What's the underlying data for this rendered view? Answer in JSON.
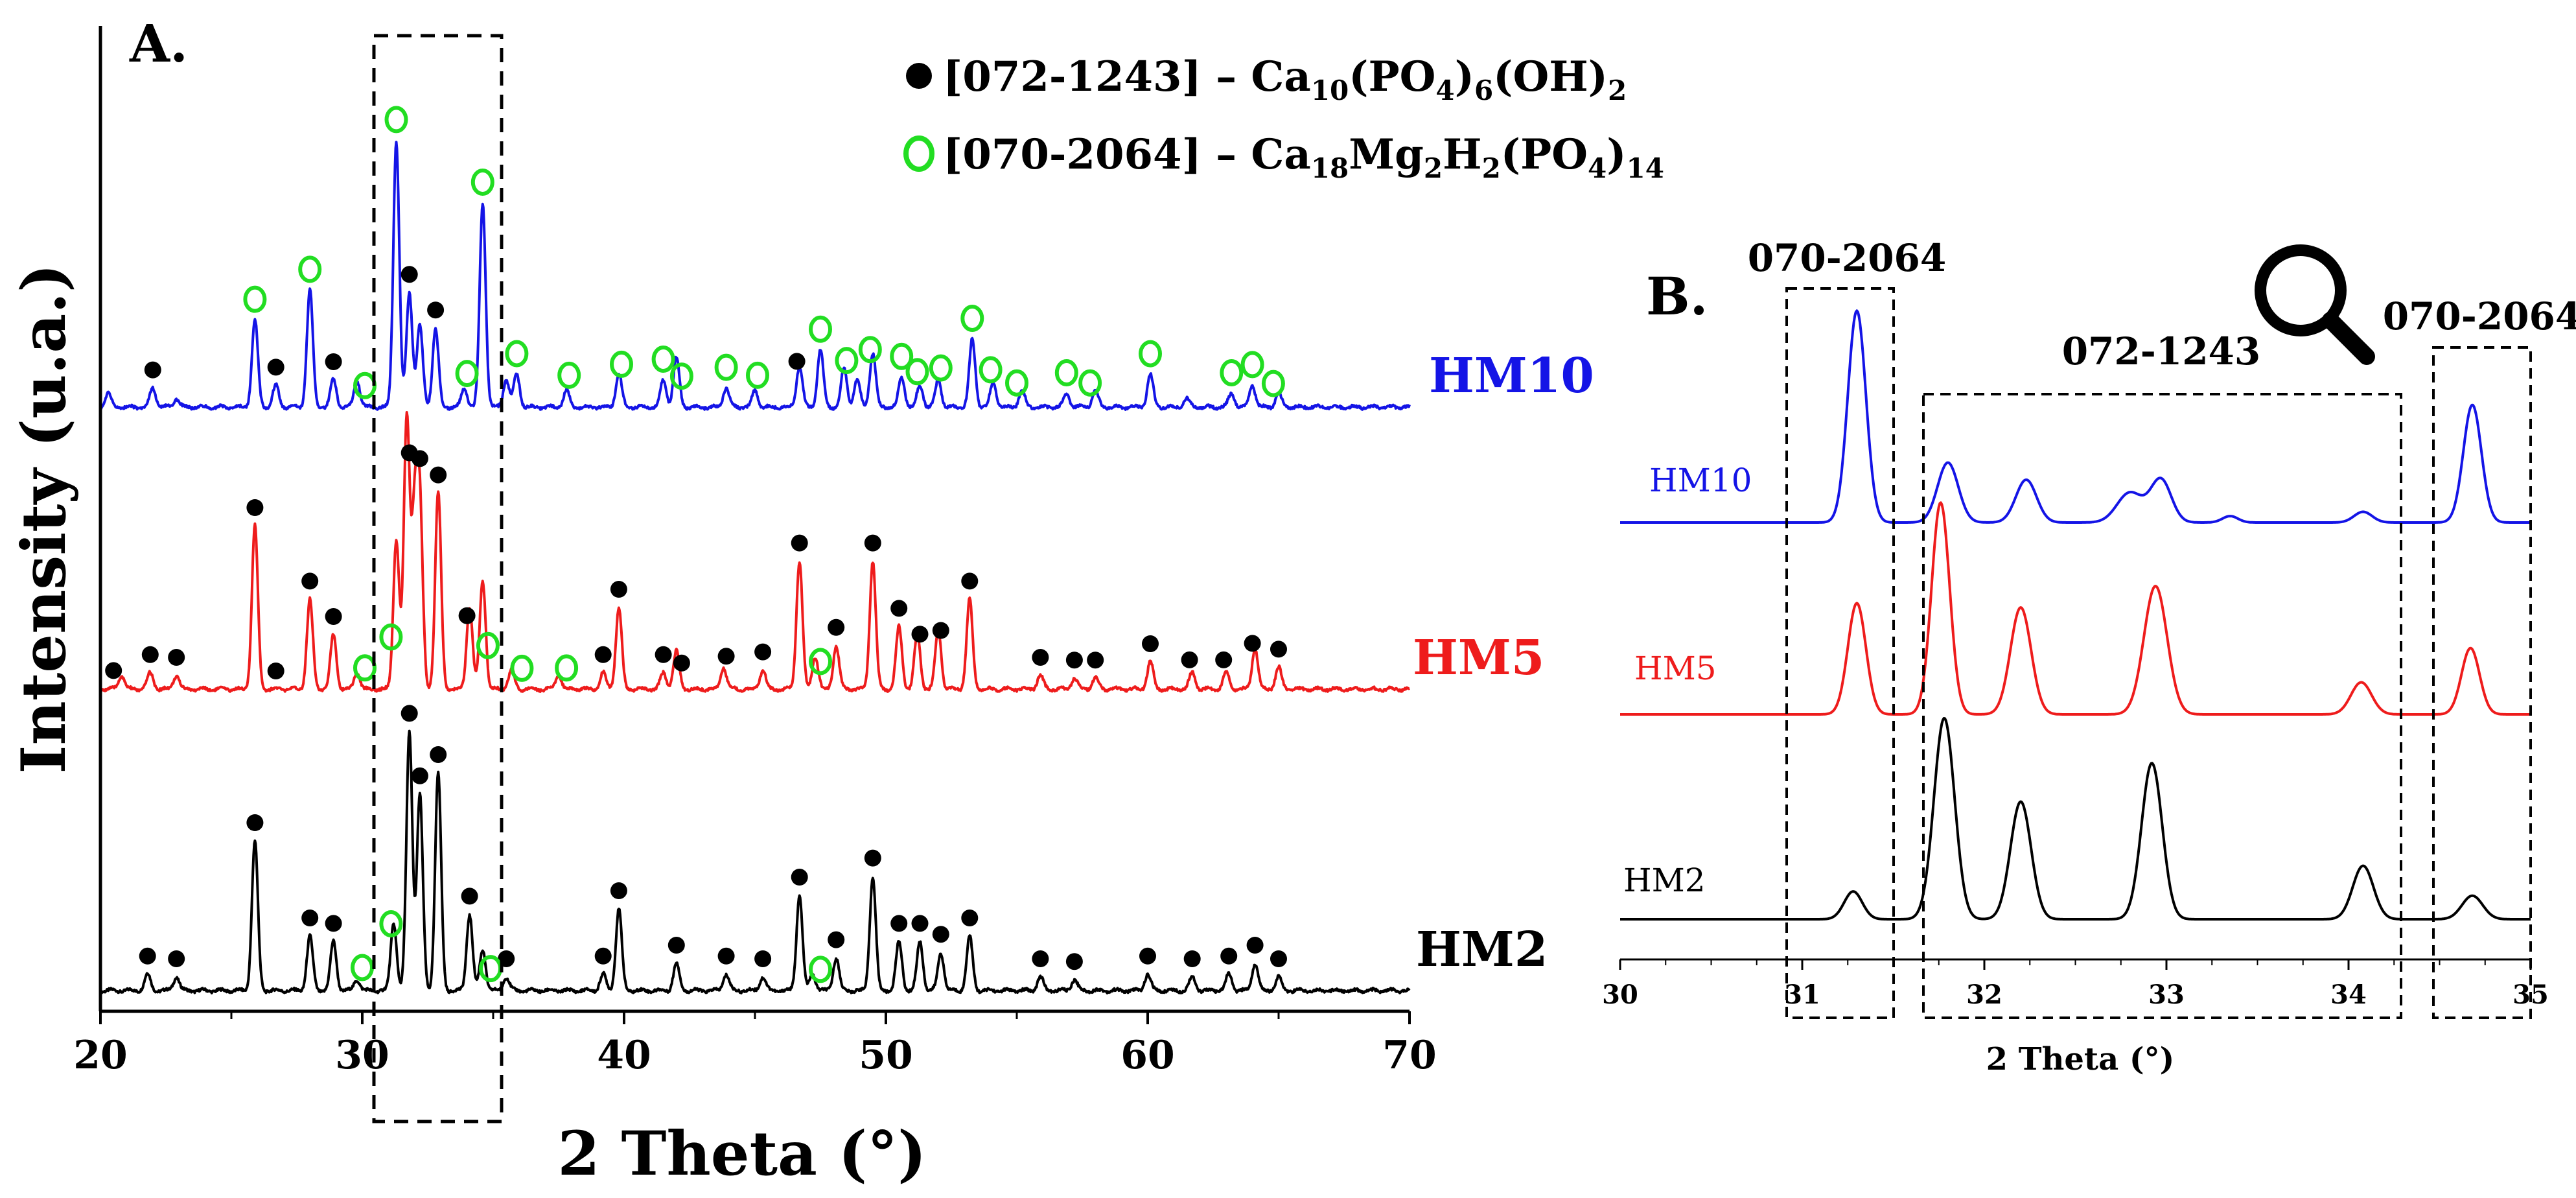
{
  "colors": {
    "hm2": "#000000",
    "hm5": "#ee1c1c",
    "hm10": "#1414e6",
    "green": "#22dd22"
  },
  "chart_data": [
    {
      "type": "line",
      "panel_label": "A.",
      "xlabel": "2 Theta (°)",
      "ylabel": "Intensity (u.a.)",
      "xlim": [
        20,
        70
      ],
      "xticks": [
        "20",
        "30",
        "40",
        "50",
        "60",
        "70"
      ],
      "legend": [
        {
          "marker": "filled-circle",
          "code": "[072-1243] –",
          "formula": [
            {
              "t": "Ca"
            },
            {
              "t": "10",
              "s": "sub"
            },
            {
              "t": "(PO"
            },
            {
              "t": "4",
              "s": "sub"
            },
            {
              "t": ")"
            },
            {
              "t": "6",
              "s": "sub"
            },
            {
              "t": "(OH)"
            },
            {
              "t": "2",
              "s": "sub"
            }
          ]
        },
        {
          "marker": "open-circle",
          "code": "[070-2064] –",
          "formula": [
            {
              "t": "Ca"
            },
            {
              "t": "18",
              "s": "sub"
            },
            {
              "t": "Mg"
            },
            {
              "t": "2",
              "s": "sub"
            },
            {
              "t": "H"
            },
            {
              "t": "2",
              "s": "sub"
            },
            {
              "t": "(PO"
            },
            {
              "t": "4",
              "s": "sub"
            },
            {
              "t": ")"
            },
            {
              "t": "14",
              "s": "sub"
            }
          ]
        }
      ],
      "series": [
        {
          "name": "HM2",
          "color_key": "hm2",
          "baseline_index": 0,
          "peaks": [
            [
              21.8,
              0.06
            ],
            [
              22.9,
              0.05
            ],
            [
              25.9,
              0.55
            ],
            [
              28.0,
              0.2
            ],
            [
              28.9,
              0.18
            ],
            [
              29.8,
              0.04
            ],
            [
              31.2,
              0.25
            ],
            [
              31.8,
              0.95
            ],
            [
              32.2,
              0.72
            ],
            [
              32.9,
              0.8
            ],
            [
              34.1,
              0.28
            ],
            [
              34.6,
              0.15
            ],
            [
              35.5,
              0.05
            ],
            [
              39.2,
              0.06
            ],
            [
              39.8,
              0.3
            ],
            [
              42.0,
              0.1
            ],
            [
              43.9,
              0.06
            ],
            [
              45.3,
              0.05
            ],
            [
              46.7,
              0.35
            ],
            [
              47.2,
              0.06
            ],
            [
              48.1,
              0.12
            ],
            [
              49.5,
              0.42
            ],
            [
              50.5,
              0.18
            ],
            [
              51.3,
              0.18
            ],
            [
              52.1,
              0.14
            ],
            [
              53.2,
              0.2
            ],
            [
              55.9,
              0.05
            ],
            [
              57.2,
              0.04
            ],
            [
              60.0,
              0.06
            ],
            [
              61.7,
              0.05
            ],
            [
              63.1,
              0.06
            ],
            [
              64.1,
              0.1
            ],
            [
              65.0,
              0.05
            ]
          ],
          "filled_markers": [
            21.8,
            22.9,
            25.9,
            28.0,
            28.9,
            31.8,
            32.2,
            32.9,
            34.1,
            35.5,
            39.2,
            39.8,
            42.0,
            43.9,
            45.3,
            46.7,
            48.1,
            49.5,
            50.5,
            51.3,
            52.1,
            53.2,
            55.9,
            57.2,
            60.0,
            61.7,
            63.1,
            64.1,
            65.0
          ],
          "open_markers": [
            30.0,
            31.1,
            34.9,
            47.5
          ]
        },
        {
          "name": "HM5",
          "color_key": "hm5",
          "baseline_index": 1,
          "peaks": [
            [
              20.8,
              0.05
            ],
            [
              21.9,
              0.06
            ],
            [
              22.9,
              0.05
            ],
            [
              25.9,
              0.6
            ],
            [
              28.0,
              0.33
            ],
            [
              28.9,
              0.2
            ],
            [
              29.8,
              0.06
            ],
            [
              31.3,
              0.55
            ],
            [
              31.7,
              0.99
            ],
            [
              32.0,
              0.62
            ],
            [
              32.2,
              0.65
            ],
            [
              32.9,
              0.72
            ],
            [
              34.1,
              0.3
            ],
            [
              34.6,
              0.4
            ],
            [
              35.7,
              0.07
            ],
            [
              37.5,
              0.05
            ],
            [
              39.2,
              0.06
            ],
            [
              39.8,
              0.3
            ],
            [
              41.5,
              0.06
            ],
            [
              42.0,
              0.14
            ],
            [
              43.8,
              0.08
            ],
            [
              45.3,
              0.07
            ],
            [
              46.7,
              0.47
            ],
            [
              47.3,
              0.12
            ],
            [
              48.1,
              0.16
            ],
            [
              49.5,
              0.47
            ],
            [
              50.5,
              0.23
            ],
            [
              51.2,
              0.2
            ],
            [
              52.0,
              0.22
            ],
            [
              53.2,
              0.33
            ],
            [
              55.9,
              0.05
            ],
            [
              57.2,
              0.04
            ],
            [
              58.0,
              0.04
            ],
            [
              60.1,
              0.1
            ],
            [
              61.7,
              0.06
            ],
            [
              63.0,
              0.06
            ],
            [
              64.1,
              0.15
            ],
            [
              65.0,
              0.08
            ]
          ],
          "filled_markers": [
            20.5,
            21.9,
            22.9,
            25.9,
            26.7,
            28.0,
            28.9,
            31.8,
            32.2,
            32.9,
            34.0,
            39.2,
            39.8,
            41.5,
            42.2,
            43.9,
            45.3,
            46.7,
            48.1,
            49.5,
            50.5,
            51.3,
            52.1,
            53.2,
            55.9,
            57.2,
            58.0,
            60.1,
            61.6,
            62.9,
            64.0,
            65.0
          ],
          "open_markers": [
            30.1,
            31.1,
            34.8,
            36.1,
            37.8,
            47.5
          ]
        },
        {
          "name": "HM10",
          "color_key": "hm10",
          "baseline_index": 2,
          "peaks": [
            [
              20.3,
              0.05
            ],
            [
              22.0,
              0.07
            ],
            [
              22.9,
              0.03
            ],
            [
              25.9,
              0.32
            ],
            [
              26.7,
              0.08
            ],
            [
              28.0,
              0.43
            ],
            [
              28.9,
              0.1
            ],
            [
              29.8,
              0.1
            ],
            [
              31.3,
              0.98
            ],
            [
              31.8,
              0.42
            ],
            [
              32.2,
              0.3
            ],
            [
              32.8,
              0.29
            ],
            [
              33.9,
              0.07
            ],
            [
              34.6,
              0.75
            ],
            [
              35.5,
              0.1
            ],
            [
              35.9,
              0.12
            ],
            [
              37.8,
              0.06
            ],
            [
              39.8,
              0.12
            ],
            [
              41.5,
              0.1
            ],
            [
              42.0,
              0.18
            ],
            [
              43.9,
              0.07
            ],
            [
              45.0,
              0.06
            ],
            [
              46.7,
              0.15
            ],
            [
              47.5,
              0.21
            ],
            [
              48.4,
              0.14
            ],
            [
              48.9,
              0.1
            ],
            [
              49.5,
              0.2
            ],
            [
              50.6,
              0.11
            ],
            [
              51.3,
              0.08
            ],
            [
              52.0,
              0.1
            ],
            [
              53.3,
              0.25
            ],
            [
              54.1,
              0.09
            ],
            [
              55.2,
              0.06
            ],
            [
              56.9,
              0.05
            ],
            [
              58.0,
              0.06
            ],
            [
              60.1,
              0.12
            ],
            [
              61.5,
              0.03
            ],
            [
              63.2,
              0.05
            ],
            [
              64.0,
              0.08
            ],
            [
              65.0,
              0.05
            ]
          ],
          "filled_markers": [
            22.0,
            26.7,
            28.9,
            31.8,
            32.8,
            46.6
          ],
          "open_markers": [
            25.9,
            28.0,
            30.1,
            31.3,
            34.0,
            34.6,
            35.9,
            37.9,
            39.9,
            41.5,
            42.2,
            43.9,
            45.1,
            47.5,
            48.5,
            49.4,
            50.6,
            51.2,
            52.1,
            53.3,
            54.0,
            55.0,
            56.9,
            57.8,
            60.1,
            63.2,
            64.0,
            64.8
          ]
        }
      ]
    },
    {
      "type": "line",
      "panel_label": "B.",
      "xlabel": "2 Theta (°)",
      "xlim": [
        30,
        35
      ],
      "xticks": [
        "30",
        "31",
        "32",
        "33",
        "34",
        "35"
      ],
      "box_labels": [
        "070-2064",
        "072-1243",
        "070-2064"
      ],
      "series": [
        {
          "name": "HM2",
          "color_key": "hm2",
          "baseline_index": 0,
          "peaks": [
            [
              31.28,
              0.13,
              0.07
            ],
            [
              31.78,
              0.94,
              0.08
            ],
            [
              32.2,
              0.55,
              0.08
            ],
            [
              32.92,
              0.73,
              0.08
            ],
            [
              34.08,
              0.25,
              0.08
            ],
            [
              34.68,
              0.11,
              0.08
            ]
          ]
        },
        {
          "name": "HM5",
          "color_key": "hm5",
          "baseline_index": 1,
          "peaks": [
            [
              31.3,
              0.52,
              0.07
            ],
            [
              31.76,
              0.99,
              0.07
            ],
            [
              32.2,
              0.5,
              0.08
            ],
            [
              32.94,
              0.6,
              0.09
            ],
            [
              34.07,
              0.15,
              0.08
            ],
            [
              34.67,
              0.31,
              0.07
            ]
          ]
        },
        {
          "name": "HM10",
          "color_key": "hm10",
          "baseline_index": 2,
          "peaks": [
            [
              31.3,
              0.99,
              0.07
            ],
            [
              31.8,
              0.28,
              0.08
            ],
            [
              32.23,
              0.2,
              0.08
            ],
            [
              32.8,
              0.14,
              0.1
            ],
            [
              32.97,
              0.2,
              0.08
            ],
            [
              33.35,
              0.03,
              0.06
            ],
            [
              34.08,
              0.05,
              0.07
            ],
            [
              34.68,
              0.55,
              0.07
            ]
          ]
        }
      ]
    }
  ]
}
